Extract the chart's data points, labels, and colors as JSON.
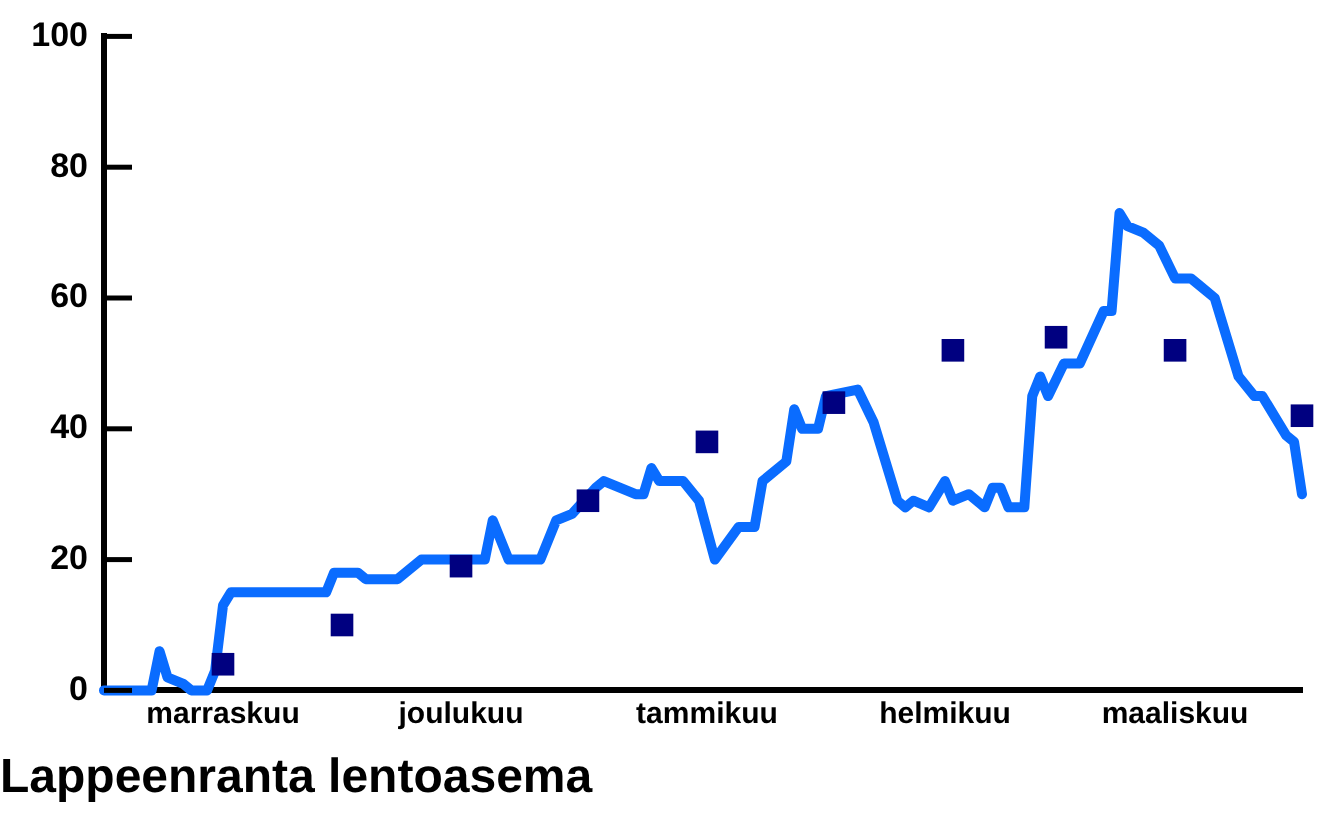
{
  "chart_data": {
    "type": "line",
    "title": "Lappeenranta lentoasema",
    "categories": [
      null,
      null,
      null,
      null,
      null,
      null,
      null,
      null,
      null,
      null,
      null,
      null,
      null,
      null,
      null,
      "marraskuu",
      null,
      null,
      null,
      null,
      null,
      null,
      null,
      null,
      null,
      null,
      null,
      null,
      null,
      null,
      null,
      null,
      null,
      null,
      null,
      null,
      null,
      null,
      null,
      null,
      null,
      null,
      null,
      null,
      null,
      "joulukuu",
      null,
      null,
      null,
      null,
      null,
      null,
      null,
      null,
      null,
      null,
      null,
      null,
      null,
      null,
      null,
      null,
      null,
      null,
      null,
      null,
      null,
      null,
      null,
      null,
      null,
      null,
      null,
      null,
      null,
      null,
      "tammikuu",
      null,
      null,
      null,
      null,
      null,
      null,
      null,
      null,
      null,
      null,
      null,
      null,
      null,
      null,
      null,
      null,
      null,
      null,
      null,
      null,
      null,
      null,
      null,
      null,
      null,
      null,
      null,
      null,
      null,
      "helmikuu",
      null,
      null,
      null,
      null,
      null,
      null,
      null,
      null,
      null,
      null,
      null,
      null,
      null,
      null,
      null,
      null,
      null,
      null,
      null,
      null,
      null,
      null,
      null,
      null,
      null,
      null,
      null,
      null,
      "maaliskuu",
      null,
      null,
      null,
      null,
      null,
      null,
      null,
      null,
      null,
      null,
      null,
      null,
      null,
      null,
      null,
      null
    ],
    "ylim": [
      0,
      100
    ],
    "yticks": [
      0,
      20,
      40,
      60,
      80,
      100
    ],
    "grid": false,
    "legend": false,
    "series": [
      {
        "color": "#0a6cff",
        "marker": "none",
        "line_style": "solid",
        "values": [
          0,
          null,
          null,
          null,
          null,
          null,
          0,
          6,
          2,
          null,
          1,
          0,
          null,
          0,
          3,
          13,
          15,
          null,
          null,
          null,
          null,
          null,
          null,
          null,
          null,
          null,
          null,
          null,
          15,
          18,
          null,
          null,
          18,
          17,
          null,
          null,
          null,
          17,
          null,
          null,
          20,
          null,
          null,
          null,
          null,
          null,
          null,
          null,
          20,
          26,
          null,
          20,
          null,
          null,
          null,
          20,
          null,
          26,
          null,
          27,
          null,
          null,
          31,
          32,
          null,
          null,
          null,
          30,
          30,
          34,
          32,
          null,
          null,
          32,
          null,
          29,
          null,
          20,
          null,
          null,
          25,
          null,
          25,
          32,
          null,
          null,
          35,
          43,
          40,
          null,
          40,
          45,
          null,
          null,
          null,
          46,
          null,
          41,
          null,
          null,
          29,
          28,
          29,
          null,
          28,
          null,
          32,
          29,
          null,
          30,
          null,
          28,
          31,
          31,
          28,
          null,
          28,
          45,
          48,
          45,
          null,
          50,
          null,
          50,
          null,
          null,
          58,
          58,
          73,
          71,
          null,
          70,
          null,
          68,
          null,
          63,
          null,
          63,
          62,
          null,
          60,
          null,
          null,
          48,
          null,
          45,
          45,
          null,
          null,
          39,
          38,
          30
        ]
      },
      {
        "type": "scatter",
        "color": "#000080",
        "marker": "square",
        "values": [
          null,
          null,
          null,
          null,
          null,
          null,
          null,
          null,
          null,
          null,
          null,
          null,
          null,
          null,
          null,
          4,
          null,
          null,
          null,
          null,
          null,
          null,
          null,
          null,
          null,
          null,
          null,
          null,
          null,
          null,
          10,
          null,
          null,
          null,
          null,
          null,
          null,
          null,
          null,
          null,
          null,
          null,
          null,
          null,
          null,
          19,
          null,
          null,
          null,
          null,
          null,
          null,
          null,
          null,
          null,
          null,
          null,
          null,
          null,
          null,
          null,
          29,
          null,
          null,
          null,
          null,
          null,
          null,
          null,
          null,
          null,
          null,
          null,
          null,
          null,
          null,
          38,
          null,
          null,
          null,
          null,
          null,
          null,
          null,
          null,
          null,
          null,
          null,
          null,
          null,
          null,
          null,
          44,
          null,
          null,
          null,
          null,
          null,
          null,
          null,
          null,
          null,
          null,
          null,
          null,
          null,
          null,
          52,
          null,
          null,
          null,
          null,
          null,
          null,
          null,
          null,
          null,
          null,
          null,
          null,
          54,
          null,
          null,
          null,
          null,
          null,
          null,
          null,
          null,
          null,
          null,
          null,
          null,
          null,
          null,
          52,
          null,
          null,
          null,
          null,
          null,
          null,
          null,
          null,
          null,
          null,
          null,
          null,
          null,
          null,
          null,
          42
        ]
      }
    ]
  }
}
